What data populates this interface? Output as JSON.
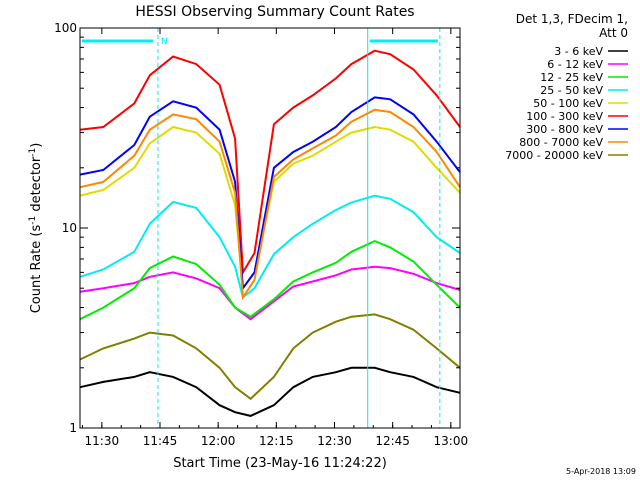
{
  "chart_data": {
    "type": "line",
    "title": "HESSI Observing Summary Count Rates",
    "xlabel": "Start Time (23-May-16 11:24:22)",
    "ylabel_main": "Count Rate (s",
    "ylabel_sup1": "-1",
    "ylabel_mid": " detector",
    "ylabel_sup2": "-1",
    "ylabel_end": ")",
    "yscale": "log",
    "ylim": [
      1,
      100
    ],
    "xlim_minutes": [
      0,
      98
    ],
    "x_ticks": [
      "11:30",
      "11:45",
      "12:00",
      "12:15",
      "12:30",
      "12:45",
      "13:00"
    ],
    "y_ticks": [
      "1",
      "10",
      "100"
    ],
    "legend_header": [
      "Det 1,3, FDecim 1,",
      "Att 0"
    ],
    "legend_position": "top-right",
    "date_stamp": "5-Apr-2018 13:09",
    "annotations": {
      "n_marker": "N"
    },
    "vertical_markers_minutes": [
      20.1,
      74.2,
      92.8
    ],
    "series": [
      {
        "name": "3 - 6 keV",
        "color": "#000000",
        "x": [
          0,
          6,
          14,
          18,
          24,
          30,
          36,
          40,
          44,
          50,
          55,
          60,
          66,
          70,
          76,
          80,
          86,
          92,
          98
        ],
        "y": [
          1.6,
          1.7,
          1.8,
          1.9,
          1.8,
          1.6,
          1.3,
          1.2,
          1.15,
          1.3,
          1.6,
          1.8,
          1.9,
          2.0,
          2.0,
          1.9,
          1.8,
          1.6,
          1.5
        ]
      },
      {
        "name": "6 - 12 keV",
        "color": "#ff00ff",
        "x": [
          0,
          6,
          14,
          18,
          24,
          30,
          36,
          40,
          44,
          50,
          55,
          60,
          66,
          70,
          76,
          80,
          86,
          92,
          98
        ],
        "y": [
          4.8,
          5.0,
          5.3,
          5.7,
          6.0,
          5.6,
          5.0,
          4.0,
          3.5,
          4.3,
          5.1,
          5.4,
          5.8,
          6.2,
          6.4,
          6.3,
          5.9,
          5.3,
          4.9
        ]
      },
      {
        "name": "12 - 25 keV",
        "color": "#00ee00",
        "x": [
          0,
          6,
          14,
          18,
          24,
          30,
          36,
          40,
          44,
          50,
          55,
          60,
          66,
          70,
          76,
          80,
          86,
          92,
          98
        ],
        "y": [
          3.5,
          4.0,
          5.0,
          6.3,
          7.2,
          6.6,
          5.2,
          4.0,
          3.6,
          4.4,
          5.4,
          6.0,
          6.7,
          7.6,
          8.6,
          8.0,
          6.8,
          5.2,
          4.0
        ]
      },
      {
        "name": "25 - 50 keV",
        "color": "#00eeee",
        "x": [
          0,
          6,
          14,
          18,
          24,
          30,
          36,
          40,
          42,
          45,
          50,
          55,
          60,
          66,
          70,
          76,
          80,
          86,
          92,
          98
        ],
        "y": [
          5.7,
          6.2,
          7.6,
          10.5,
          13.5,
          12.6,
          9.0,
          6.4,
          4.5,
          5.0,
          7.4,
          9.0,
          10.5,
          12.3,
          13.4,
          14.5,
          14.0,
          12.0,
          9.0,
          7.5
        ]
      },
      {
        "name": "50 - 100 keV",
        "color": "#dddd00",
        "x": [
          0,
          6,
          14,
          18,
          24,
          30,
          36,
          40,
          42,
          45,
          50,
          55,
          60,
          66,
          70,
          76,
          80,
          86,
          92,
          98
        ],
        "y": [
          14.5,
          15.5,
          20.0,
          26.5,
          32.0,
          30.0,
          23.5,
          13.0,
          5.0,
          6.0,
          17.0,
          21.0,
          23.0,
          27.0,
          30.0,
          32.0,
          31.0,
          27.0,
          20.0,
          15.0
        ]
      },
      {
        "name": "100 - 300 keV",
        "color": "#ff0000",
        "x": [
          0,
          6,
          14,
          18,
          24,
          30,
          36,
          40,
          42,
          45,
          50,
          55,
          60,
          66,
          70,
          76,
          80,
          86,
          92,
          98
        ],
        "y": [
          31.0,
          32.0,
          42.0,
          58.0,
          72.0,
          66.0,
          52.0,
          28.0,
          6.0,
          7.5,
          33.0,
          40.0,
          46.0,
          56.0,
          66.0,
          77.0,
          74.0,
          62.0,
          46.0,
          32.0
        ]
      },
      {
        "name": "300 - 800 keV",
        "color": "#0000ff",
        "x": [
          0,
          6,
          14,
          18,
          24,
          30,
          36,
          40,
          42,
          45,
          50,
          55,
          60,
          66,
          70,
          76,
          80,
          86,
          92,
          98
        ],
        "y": [
          18.5,
          19.5,
          26.0,
          36.0,
          43.0,
          40.0,
          31.0,
          17.0,
          5.0,
          6.0,
          20.0,
          24.0,
          27.0,
          32.0,
          38.0,
          45.0,
          44.0,
          37.0,
          27.0,
          19.0
        ]
      },
      {
        "name": "800 - 7000 keV",
        "color": "#ff8800",
        "x": [
          0,
          6,
          14,
          18,
          24,
          30,
          36,
          40,
          42,
          45,
          50,
          55,
          60,
          66,
          70,
          76,
          80,
          86,
          92,
          98
        ],
        "y": [
          16.0,
          17.0,
          23.0,
          31.0,
          37.0,
          35.0,
          27.0,
          15.0,
          4.5,
          5.5,
          18.0,
          22.0,
          25.0,
          29.0,
          34.0,
          39.0,
          38.0,
          32.0,
          24.0,
          16.0
        ]
      },
      {
        "name": "7000 - 20000 keV",
        "color": "#808000",
        "x": [
          0,
          6,
          14,
          18,
          24,
          30,
          36,
          40,
          44,
          50,
          55,
          60,
          66,
          70,
          76,
          80,
          86,
          92,
          98
        ],
        "y": [
          2.2,
          2.5,
          2.8,
          3.0,
          2.9,
          2.5,
          2.0,
          1.6,
          1.4,
          1.8,
          2.5,
          3.0,
          3.4,
          3.6,
          3.7,
          3.5,
          3.1,
          2.5,
          2.0
        ]
      }
    ]
  }
}
